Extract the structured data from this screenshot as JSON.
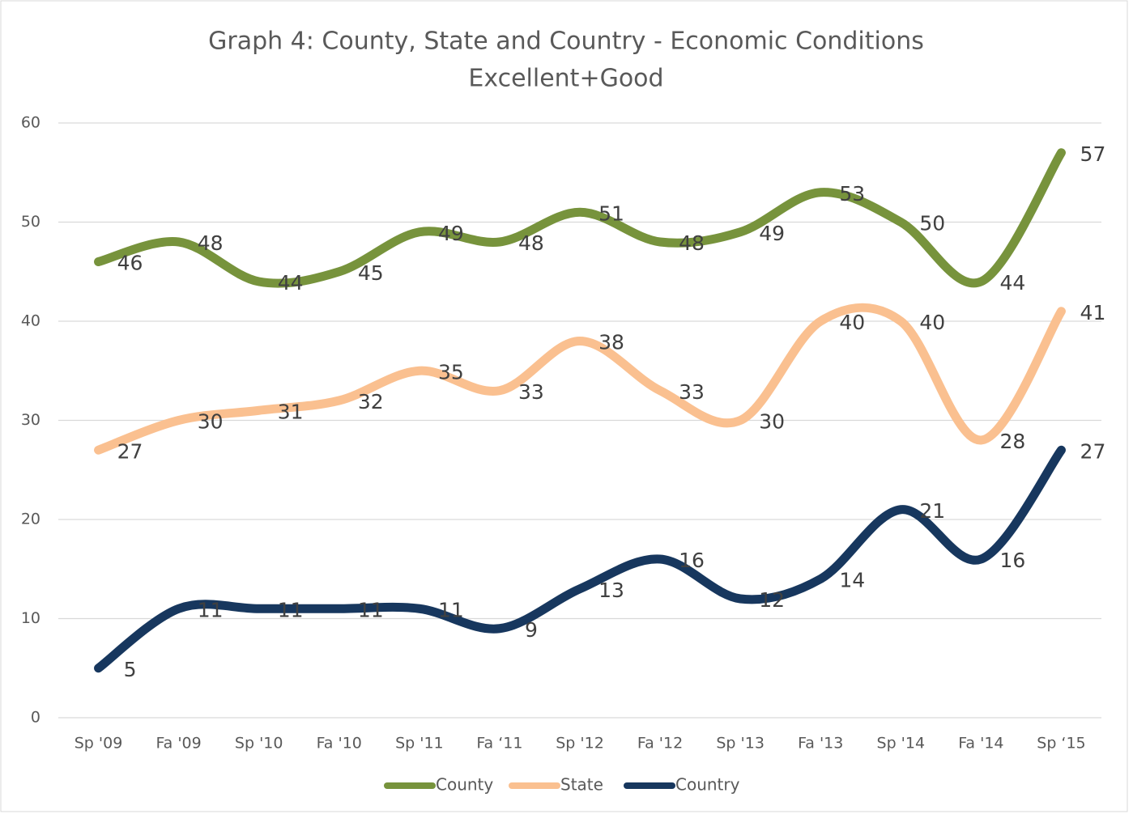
{
  "chart_data": {
    "type": "line",
    "title": "Graph 4: County, State and Country - Economic Conditions",
    "subtitle": "Excellent+Good",
    "categories": [
      "Sp '09",
      "Fa '09",
      "Sp '10",
      "Fa '10",
      "Sp '11",
      "Fa ‘11",
      "Sp '12",
      "Fa '12",
      "Sp '13",
      "Fa '13",
      "Sp '14",
      "Fa '14",
      "Sp ‘15"
    ],
    "series": [
      {
        "name": "County",
        "color": "#77933c",
        "values": [
          46,
          48,
          44,
          45,
          49,
          48,
          51,
          48,
          49,
          53,
          50,
          44,
          57
        ]
      },
      {
        "name": "State",
        "color": "#fac090",
        "values": [
          27,
          30,
          31,
          32,
          35,
          33,
          38,
          33,
          30,
          40,
          40,
          28,
          41
        ]
      },
      {
        "name": "Country",
        "color": "#17375e",
        "values": [
          5,
          11,
          11,
          11,
          11,
          9,
          13,
          16,
          12,
          14,
          21,
          16,
          27
        ]
      }
    ],
    "ylim": [
      0,
      60
    ],
    "yticks": [
      0,
      10,
      20,
      30,
      40,
      50,
      60
    ],
    "grid": true,
    "smooth": true,
    "legend": "bottom"
  }
}
